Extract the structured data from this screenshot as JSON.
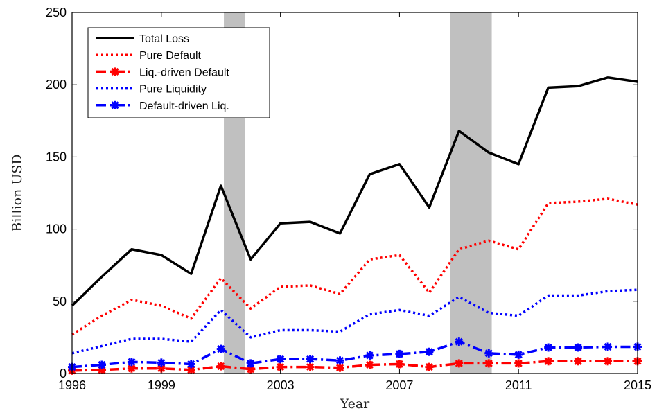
{
  "chart_data": {
    "type": "line",
    "xlabel": "Year",
    "ylabel": "Billion USD",
    "xlim": [
      1996,
      2015
    ],
    "ylim": [
      0,
      250
    ],
    "xticks": [
      1996,
      1999,
      2003,
      2007,
      2011,
      2015
    ],
    "yticks": [
      0,
      50,
      100,
      150,
      200,
      250
    ],
    "grid": false,
    "legend_position": "top-left",
    "shaded_periods": [
      [
        2001.1,
        2001.8
      ],
      [
        2008.7,
        2010.1
      ]
    ],
    "x": [
      1996,
      1997,
      1998,
      1999,
      2000,
      2001,
      2002,
      2003,
      2004,
      2005,
      2006,
      2007,
      2008,
      2009,
      2010,
      2011,
      2012,
      2013,
      2014,
      2015
    ],
    "series": [
      {
        "name": "Total Loss",
        "color": "#000000",
        "style": "solid",
        "marker": false,
        "values": [
          47,
          67,
          86,
          82,
          69,
          130,
          79,
          104,
          105,
          97,
          138,
          145,
          115,
          168,
          153,
          145,
          198,
          199,
          205,
          202
        ]
      },
      {
        "name": "Pure Default",
        "color": "#ff0000",
        "style": "dotted",
        "marker": false,
        "values": [
          27,
          40,
          51,
          47,
          38,
          66,
          45,
          60,
          61,
          55,
          79,
          82,
          56,
          86,
          92,
          86,
          118,
          119,
          121,
          117
        ]
      },
      {
        "name": "Liq.-driven Default",
        "color": "#ff0000",
        "style": "dashdot",
        "marker": true,
        "values": [
          2,
          2.5,
          3.5,
          3.5,
          2.5,
          5,
          3,
          4.5,
          4.5,
          4,
          6,
          6.5,
          4.5,
          7,
          7,
          7,
          8.5,
          8.5,
          8.5,
          8.5
        ]
      },
      {
        "name": "Pure Liquidity",
        "color": "#0000ff",
        "style": "dotted",
        "marker": false,
        "values": [
          14,
          19,
          24,
          24,
          22,
          44,
          25,
          30,
          30,
          29,
          41,
          44,
          40,
          53,
          42,
          40,
          54,
          54,
          57,
          58
        ]
      },
      {
        "name": "Default-driven Liq.",
        "color": "#0000ff",
        "style": "dashdot",
        "marker": true,
        "values": [
          4.5,
          6,
          8,
          7.5,
          6.5,
          17,
          7,
          10,
          10,
          9,
          12.5,
          13.5,
          15,
          22,
          14,
          13,
          18,
          18,
          18.5,
          18.5
        ]
      }
    ]
  }
}
